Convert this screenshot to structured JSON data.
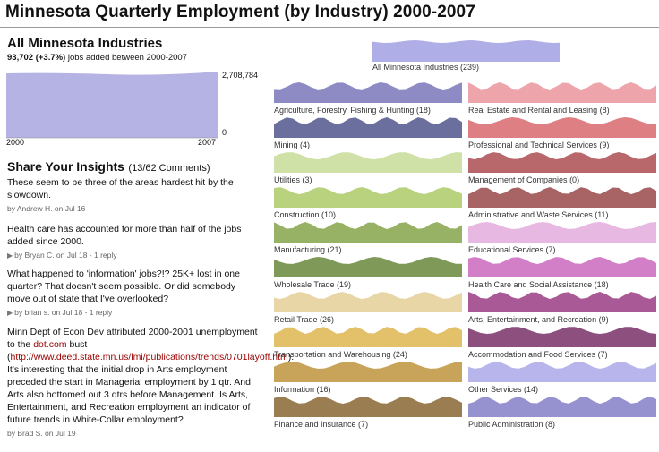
{
  "title": "Minnesota Quarterly Employment (by Industry) 2000-2007",
  "overview": {
    "heading": "All Minnesota Industries",
    "jobs_change": "93,702 (+3.7%)",
    "jobs_text": " jobs added between 2000-2007",
    "y_max_label": "2,708,784",
    "y_min_label": "0",
    "x_start_label": "2000",
    "x_end_label": "2007",
    "color": "#b5b3e3"
  },
  "insights": {
    "title": "Share Your Insights",
    "count": "(13/62 Comments)",
    "comments": [
      {
        "text": "These seem to be three of the areas hardest hit by the slowdown.",
        "byline": "by Andrew H. on Jul 16"
      },
      {
        "text": "Health care has accounted for more than half of the jobs added since 2000.",
        "byline": "by Bryan C. on Jul 18 - 1 reply"
      },
      {
        "text": "What happened to 'information' jobs?!? 25K+ lost in one quarter? That doesn't seem possible. Or did somebody move out of state that I've overlooked?",
        "byline": "by brian s. on Jul 18 - 1 reply"
      },
      {
        "text_before": "Minn Dept of Econ Dev attributed 2000-2001 unemployment to the ",
        "link1": "dot.com",
        "text_mid": " bust (",
        "link2": "http://www.deed.state.mn.us/lmi/publications/trends/0701layoff.htm",
        "text_after": "). It's interesting that the initial drop in Arts employment preceded the start in Managerial employment by 1 qtr. And Arts also bottomed out 3 qtrs before Management. Is Arts, Entertainment, and Recreation employment an indicator of future trends in White-Collar employment?",
        "byline": "by Brad S. on Jul 19"
      }
    ]
  },
  "all_industries": {
    "label": "All Minnesota Industries (239)",
    "color": "#b0aee6"
  },
  "industries_left": [
    {
      "label": "Agriculture, Forestry, Fishing & Hunting (18)",
      "color": "#8e8ac4"
    },
    {
      "label": "Mining (4)",
      "color": "#6b6f9e"
    },
    {
      "label": "Utilities (3)",
      "color": "#cfe1a7"
    },
    {
      "label": "Construction (10)",
      "color": "#b8d27d"
    },
    {
      "label": "Manufacturing (21)",
      "color": "#97b165"
    },
    {
      "label": "Wholesale Trade (19)",
      "color": "#7f9a58"
    },
    {
      "label": "Retail Trade (26)",
      "color": "#e8d6a6"
    },
    {
      "label": "Transportation and Warehousing (24)",
      "color": "#e3c16a"
    },
    {
      "label": "Information (16)",
      "color": "#c8a45a"
    },
    {
      "label": "Finance and Insurance (7)",
      "color": "#9b7d52"
    }
  ],
  "industries_right": [
    {
      "label": "Real Estate and Rental and Leasing (8)",
      "color": "#eda4aa"
    },
    {
      "label": "Professional and Technical Services (9)",
      "color": "#de7f84"
    },
    {
      "label": "Management of Companies (0)",
      "color": "#b8676b"
    },
    {
      "label": "Administrative and Waste Services (11)",
      "color": "#a86465"
    },
    {
      "label": "Educational Services (7)",
      "color": "#e7b8e1"
    },
    {
      "label": "Health Care and Social Assistance (18)",
      "color": "#d27fc8"
    },
    {
      "label": "Arts, Entertainment, and Recreation (9)",
      "color": "#a95a96"
    },
    {
      "label": "Accommodation and Food Services (7)",
      "color": "#8c4f7e"
    },
    {
      "label": "Other Services (14)",
      "color": "#b7b5ec"
    },
    {
      "label": "Public Administration (8)",
      "color": "#9592cf"
    }
  ]
}
